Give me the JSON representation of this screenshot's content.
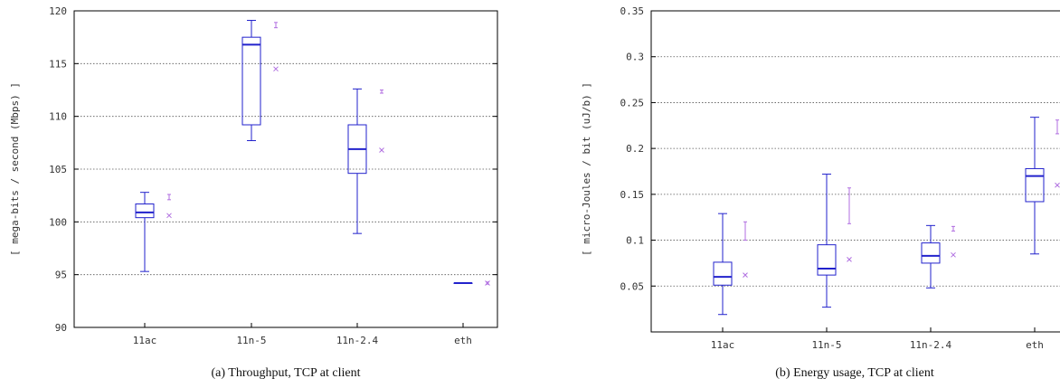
{
  "chart_data": [
    {
      "type": "box",
      "caption": "(a) Throughput, TCP at client",
      "ylabel": "[ mega-bits / second (Mbps) ]",
      "ylim": [
        90,
        120
      ],
      "yticks": [
        90,
        95,
        100,
        105,
        110,
        115,
        120
      ],
      "grid": "horizontal-dotted",
      "categories": [
        "11ac",
        "11n-5",
        "11n-2.4",
        "eth"
      ],
      "boxes": [
        {
          "min": 95.3,
          "q1": 100.4,
          "median": 100.9,
          "q3": 101.7,
          "max": 102.8
        },
        {
          "min": 107.7,
          "q1": 109.2,
          "median": 116.8,
          "q3": 117.5,
          "max": 119.1
        },
        {
          "min": 98.9,
          "q1": 104.6,
          "median": 106.9,
          "q3": 109.2,
          "max": 112.6
        },
        {
          "min": 94.2,
          "q1": 94.2,
          "median": 94.2,
          "q3": 94.2,
          "max": 94.2
        }
      ],
      "means": [
        100.6,
        114.5,
        106.8,
        94.2
      ],
      "ci": [
        [
          102.1,
          102.6
        ],
        [
          118.4,
          118.9
        ],
        [
          112.2,
          112.5
        ],
        [
          94.1,
          94.3
        ]
      ],
      "colors": {
        "box": "#2222cc",
        "mean": "#b06ee0",
        "grid": "#555555"
      }
    },
    {
      "type": "box",
      "caption": "(b) Energy usage, TCP at client",
      "ylabel": "[ micro-Joules / bit (uJ/b) ]",
      "ylim": [
        0.0,
        0.35
      ],
      "yticks": [
        "0.05",
        "0.1",
        "0.15",
        "0.2",
        "0.25",
        "0.3",
        "0.35"
      ],
      "grid": "horizontal-dotted",
      "categories": [
        "11ac",
        "11n-5",
        "11n-2.4",
        "eth"
      ],
      "boxes": [
        {
          "min": 0.019,
          "q1": 0.051,
          "median": 0.06,
          "q3": 0.076,
          "max": 0.129
        },
        {
          "min": 0.027,
          "q1": 0.062,
          "median": 0.069,
          "q3": 0.095,
          "max": 0.172
        },
        {
          "min": 0.048,
          "q1": 0.075,
          "median": 0.083,
          "q3": 0.097,
          "max": 0.116
        },
        {
          "min": 0.085,
          "q1": 0.142,
          "median": 0.17,
          "q3": 0.178,
          "max": 0.234
        }
      ],
      "means": [
        0.062,
        0.079,
        0.084,
        0.16
      ],
      "ci": [
        [
          0.1,
          0.12
        ],
        [
          0.118,
          0.157
        ],
        [
          0.11,
          0.115
        ],
        [
          0.216,
          0.231
        ]
      ],
      "colors": {
        "box": "#2222cc",
        "mean": "#b06ee0",
        "grid": "#555555"
      }
    }
  ]
}
